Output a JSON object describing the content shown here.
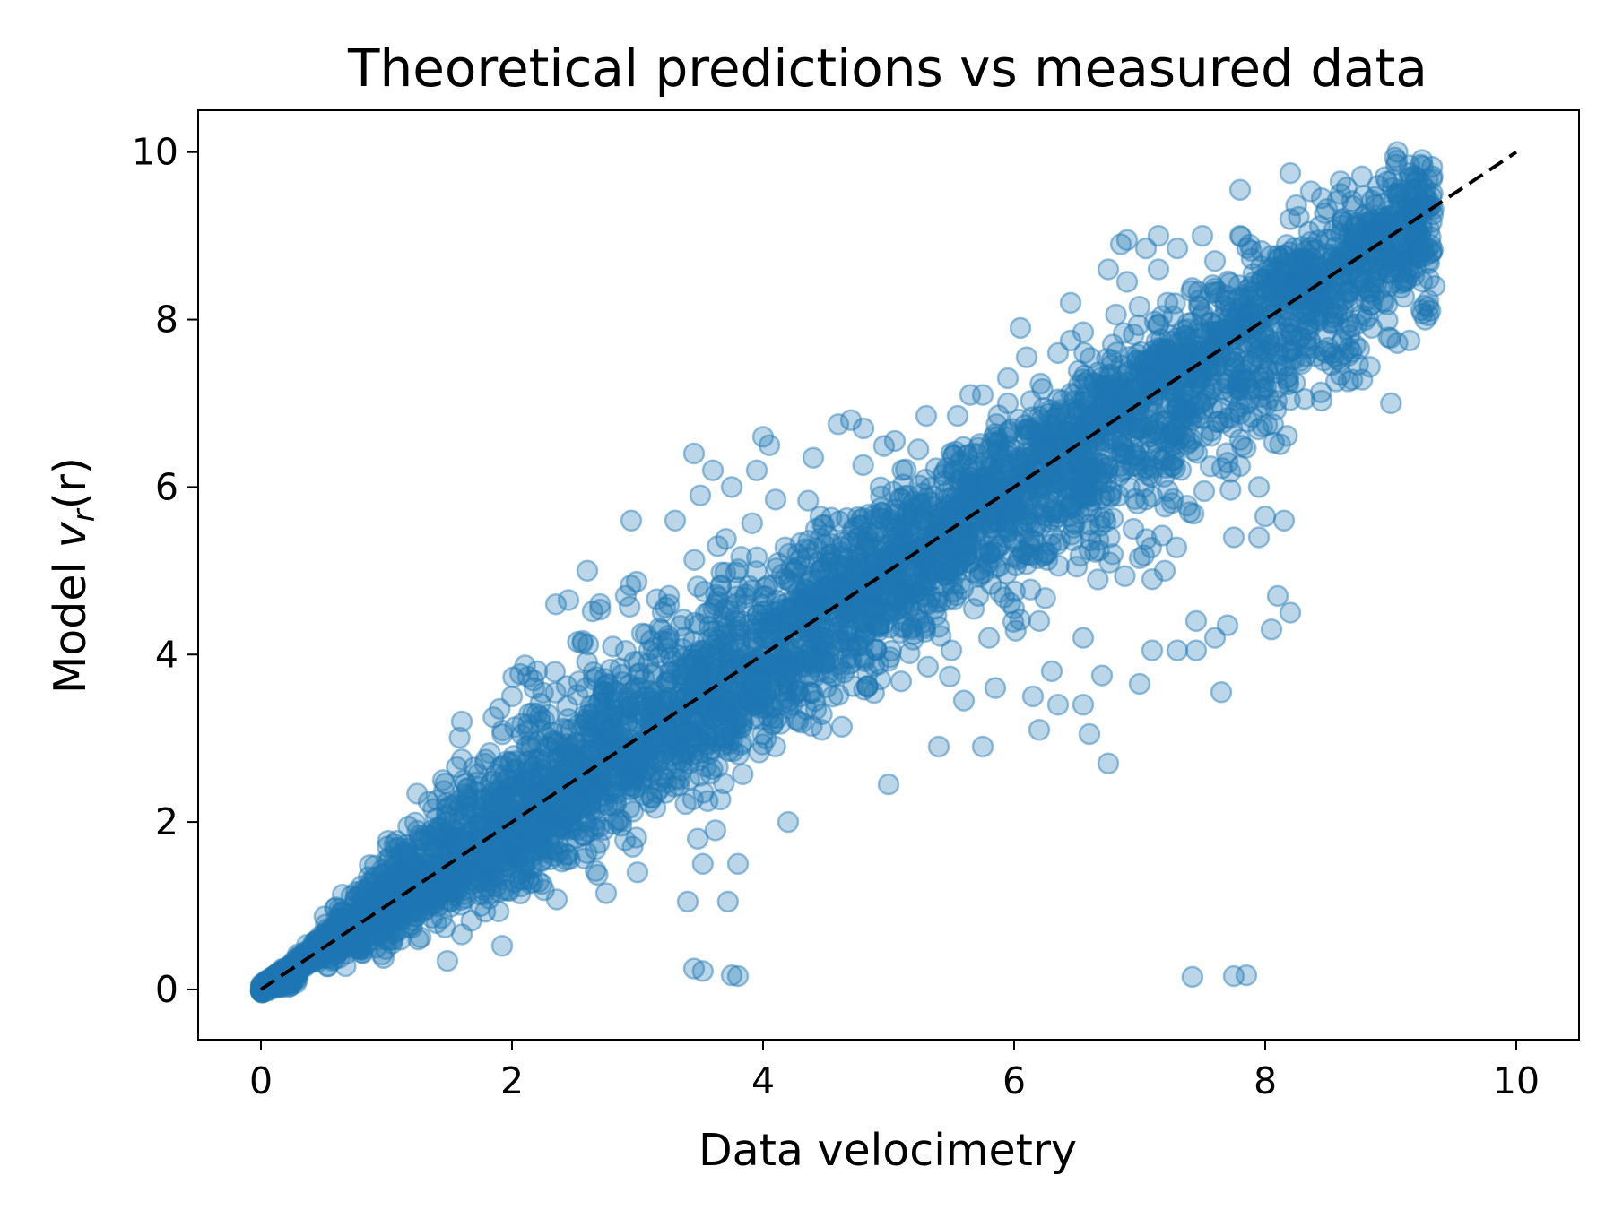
{
  "chart_data": {
    "type": "scatter",
    "title": "Theoretical predictions vs measured data",
    "xlabel": "Data velocimetry",
    "ylabel": {
      "prefix": "Model ",
      "var": "v",
      "sub": "r",
      "arg": "(r)"
    },
    "xlim": [
      -0.5,
      10.5
    ],
    "ylim": [
      -0.6,
      10.5
    ],
    "xticks": [
      0,
      2,
      4,
      6,
      8,
      10
    ],
    "yticks": [
      0,
      2,
      4,
      6,
      8,
      10
    ],
    "grid": false,
    "series": [
      {
        "marker_color": "#1f77b4",
        "marker_alpha": 0.3,
        "description_points": "dense cloud of ~20000 points around y = x, spread grows with x",
        "points": [
          [
            3.45,
            0.25
          ],
          [
            3.52,
            0.22
          ],
          [
            3.75,
            0.17
          ],
          [
            3.8,
            0.16
          ],
          [
            7.42,
            0.15
          ],
          [
            7.75,
            0.16
          ],
          [
            7.85,
            0.17
          ],
          [
            3.4,
            1.05
          ],
          [
            3.72,
            1.05
          ],
          [
            3.52,
            1.5
          ],
          [
            3.8,
            1.5
          ],
          [
            3.48,
            1.8
          ],
          [
            3.62,
            1.9
          ],
          [
            4.2,
            2.0
          ],
          [
            3.0,
            1.4
          ],
          [
            2.75,
            1.15
          ],
          [
            5.0,
            2.45
          ],
          [
            5.4,
            2.9
          ],
          [
            5.75,
            2.9
          ],
          [
            6.6,
            3.05
          ],
          [
            6.75,
            2.7
          ],
          [
            6.2,
            3.1
          ],
          [
            6.35,
            3.4
          ],
          [
            6.55,
            3.4
          ],
          [
            6.15,
            3.5
          ],
          [
            6.3,
            3.8
          ],
          [
            6.7,
            3.75
          ],
          [
            7.0,
            3.65
          ],
          [
            7.65,
            3.55
          ],
          [
            5.6,
            3.45
          ],
          [
            5.85,
            3.6
          ],
          [
            7.1,
            4.05
          ],
          [
            7.3,
            4.05
          ],
          [
            7.45,
            4.05
          ],
          [
            7.6,
            4.2
          ],
          [
            7.7,
            4.35
          ],
          [
            7.45,
            4.4
          ],
          [
            8.05,
            4.3
          ],
          [
            8.1,
            4.7
          ],
          [
            8.2,
            4.5
          ],
          [
            6.55,
            4.2
          ],
          [
            6.2,
            4.4
          ],
          [
            6.0,
            4.55
          ],
          [
            5.5,
            4.05
          ],
          [
            5.8,
            4.2
          ],
          [
            7.75,
            5.4
          ],
          [
            7.95,
            5.4
          ],
          [
            8.0,
            5.65
          ],
          [
            8.15,
            5.6
          ],
          [
            7.2,
            5.0
          ],
          [
            7.1,
            4.9
          ],
          [
            7.0,
            5.15
          ],
          [
            6.95,
            5.5
          ],
          [
            7.05,
            5.85
          ],
          [
            6.6,
            5.25
          ],
          [
            6.5,
            5.05
          ],
          [
            7.4,
            5.7
          ],
          [
            7.8,
            6.25
          ],
          [
            7.95,
            6.0
          ],
          [
            1.6,
            3.2
          ],
          [
            1.45,
            2.5
          ],
          [
            2.2,
            3.8
          ],
          [
            2.0,
            3.5
          ],
          [
            2.6,
            5.0
          ],
          [
            2.95,
            5.6
          ],
          [
            3.3,
            5.6
          ],
          [
            3.5,
            5.9
          ],
          [
            3.75,
            6.0
          ],
          [
            3.6,
            6.2
          ],
          [
            3.45,
            6.4
          ],
          [
            4.0,
            6.6
          ],
          [
            4.05,
            6.5
          ],
          [
            3.95,
            6.2
          ],
          [
            4.4,
            6.35
          ],
          [
            4.1,
            5.85
          ],
          [
            2.35,
            4.6
          ],
          [
            2.45,
            4.65
          ],
          [
            4.7,
            6.8
          ],
          [
            4.6,
            6.75
          ],
          [
            4.8,
            6.7
          ],
          [
            5.05,
            6.55
          ],
          [
            5.3,
            6.85
          ],
          [
            5.55,
            6.85
          ],
          [
            5.65,
            7.1
          ],
          [
            5.75,
            7.1
          ],
          [
            5.95,
            7.0
          ],
          [
            5.95,
            7.3
          ],
          [
            6.05,
            7.9
          ],
          [
            6.1,
            7.55
          ],
          [
            6.35,
            7.6
          ],
          [
            6.45,
            7.75
          ],
          [
            6.55,
            7.85
          ],
          [
            6.45,
            8.2
          ],
          [
            6.75,
            8.6
          ],
          [
            6.9,
            8.45
          ],
          [
            7.05,
            8.85
          ],
          [
            6.85,
            8.9
          ],
          [
            6.9,
            8.95
          ],
          [
            7.15,
            9.0
          ],
          [
            7.3,
            8.85
          ],
          [
            7.5,
            9.0
          ],
          [
            7.6,
            8.7
          ],
          [
            7.8,
            9.0
          ],
          [
            8.2,
            9.75
          ],
          [
            8.2,
            9.2
          ],
          [
            8.6,
            9.5
          ],
          [
            8.45,
            9.45
          ],
          [
            8.6,
            9.65
          ],
          [
            8.7,
            9.35
          ],
          [
            8.8,
            9.25
          ],
          [
            8.9,
            9.6
          ],
          [
            9.05,
            9.9
          ],
          [
            9.15,
            9.7
          ],
          [
            9.2,
            9.65
          ],
          [
            9.25,
            9.4
          ],
          [
            9.1,
            9.2
          ],
          [
            9.2,
            8.8
          ],
          [
            9.3,
            8.7
          ],
          [
            9.35,
            8.4
          ],
          [
            9.3,
            8.15
          ],
          [
            9.3,
            8.05
          ],
          [
            9.15,
            7.75
          ],
          [
            8.85,
            7.9
          ],
          [
            8.75,
            7.65
          ],
          [
            8.6,
            7.5
          ],
          [
            7.8,
            9.55
          ],
          [
            7.15,
            8.6
          ]
        ],
        "core_band": {
          "description": "dense band of points",
          "x_min": 0.0,
          "x_max": 9.35,
          "lower_offset_at_x": [
            [
              0.2,
              0.08
            ],
            [
              1.0,
              0.6
            ],
            [
              2.0,
              1.1
            ],
            [
              3.0,
              1.3
            ],
            [
              4.0,
              1.4
            ],
            [
              5.0,
              1.5
            ],
            [
              6.0,
              1.6
            ],
            [
              7.0,
              1.9
            ],
            [
              8.0,
              1.8
            ],
            [
              9.0,
              1.6
            ]
          ],
          "upper_offset_at_x": [
            [
              0.2,
              0.12
            ],
            [
              1.0,
              0.8
            ],
            [
              2.0,
              1.6
            ],
            [
              3.0,
              1.9
            ],
            [
              4.0,
              1.6
            ],
            [
              5.0,
              1.2
            ],
            [
              6.0,
              1.0
            ],
            [
              7.0,
              1.1
            ],
            [
              8.0,
              1.1
            ],
            [
              9.0,
              0.9
            ]
          ]
        }
      }
    ],
    "reference_line": {
      "from": [
        0,
        0
      ],
      "to": [
        10,
        10
      ],
      "style": "dashed",
      "color": "#000000"
    }
  }
}
